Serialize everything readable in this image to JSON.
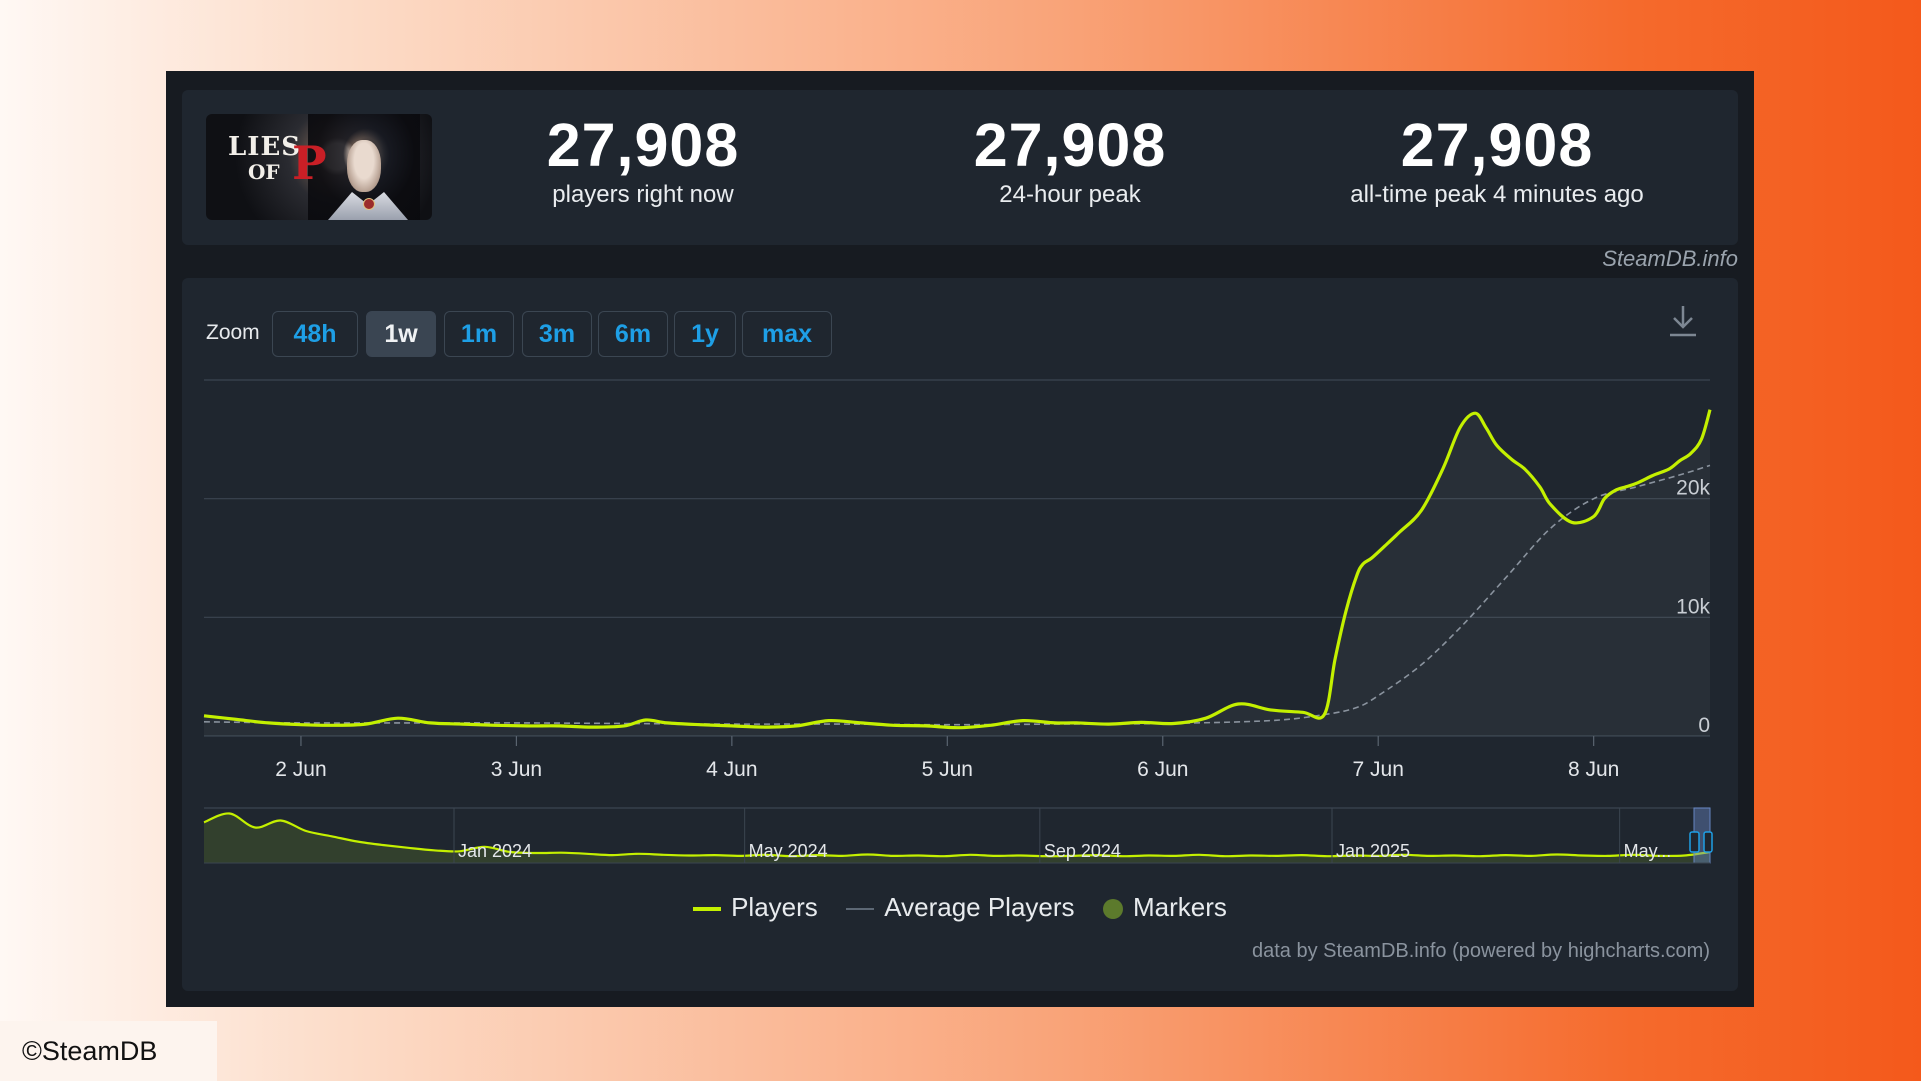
{
  "stats": [
    {
      "value": "27,908",
      "label": "players right now"
    },
    {
      "value": "27,908",
      "label": "24-hour peak"
    },
    {
      "value": "27,908",
      "label": "all-time peak 4 minutes ago"
    }
  ],
  "game_logo": {
    "line1": "LIES",
    "line2": "OF",
    "letter": "P"
  },
  "source_label": "SteamDB.info",
  "zoom": {
    "label": "Zoom",
    "options": [
      "48h",
      "1w",
      "1m",
      "3m",
      "6m",
      "1y",
      "max"
    ],
    "selected": "1w"
  },
  "legend": {
    "players": "Players",
    "average": "Average Players",
    "markers": "Markers"
  },
  "credit": "data by SteamDB.info (powered by highcharts.com)",
  "copyright": "©SteamDB",
  "colors": {
    "players": "#c4f000",
    "average": "#8a939e",
    "markers": "#5c7a2c",
    "background": "#1f262f",
    "zoom_button": "#1e9fe6"
  },
  "icons": [
    "download-icon"
  ],
  "chart_data": {
    "type": "line",
    "title": "",
    "xlabel": "",
    "ylabel": "",
    "x_tick_labels": [
      "2 Jun",
      "3 Jun",
      "4 Jun",
      "5 Jun",
      "6 Jun",
      "7 Jun",
      "8 Jun"
    ],
    "y_tick_labels": [
      "0",
      "10k",
      "20k"
    ],
    "ylim": [
      0,
      30000
    ],
    "xlim": [
      1.55,
      8.54
    ],
    "grid": true,
    "legend_position": "bottom-center",
    "series": [
      {
        "name": "Players",
        "x": [
          1.55,
          1.7,
          1.85,
          2.0,
          2.15,
          2.3,
          2.45,
          2.6,
          2.75,
          2.9,
          3.05,
          3.2,
          3.35,
          3.5,
          3.6,
          3.7,
          3.85,
          4.0,
          4.15,
          4.3,
          4.45,
          4.6,
          4.75,
          4.9,
          5.05,
          5.2,
          5.35,
          5.5,
          5.6,
          5.75,
          5.9,
          6.05,
          6.2,
          6.35,
          6.5,
          6.65,
          6.75,
          6.8,
          6.85,
          6.9,
          6.93,
          6.97,
          7.03,
          7.1,
          7.2,
          7.3,
          7.38,
          7.45,
          7.5,
          7.55,
          7.62,
          7.68,
          7.75,
          7.8,
          7.9,
          8.0,
          8.05,
          8.1,
          8.15,
          8.2,
          8.28,
          8.35,
          8.4,
          8.45,
          8.5,
          8.54
        ],
        "values": [
          1700,
          1400,
          1100,
          950,
          900,
          1000,
          1500,
          1100,
          1000,
          900,
          850,
          850,
          750,
          850,
          1350,
          1100,
          950,
          850,
          750,
          850,
          1300,
          1100,
          900,
          850,
          700,
          900,
          1300,
          1100,
          1100,
          1000,
          1150,
          1050,
          1500,
          2700,
          2200,
          2000,
          1800,
          6500,
          10500,
          13500,
          14500,
          15000,
          16000,
          17200,
          19000,
          22500,
          26000,
          27200,
          26000,
          24500,
          23300,
          22500,
          21000,
          19500,
          18000,
          18500,
          20000,
          20700,
          21000,
          21300,
          22000,
          22500,
          23200,
          23800,
          25000,
          27500
        ]
      },
      {
        "name": "Average Players",
        "x": [
          1.55,
          2.0,
          2.5,
          3.0,
          3.5,
          4.0,
          4.5,
          5.0,
          5.5,
          6.0,
          6.5,
          6.75,
          6.9,
          7.0,
          7.2,
          7.4,
          7.6,
          7.8,
          8.0,
          8.2,
          8.4,
          8.54
        ],
        "values": [
          1200,
          1100,
          1100,
          1100,
          1050,
          1000,
          1000,
          950,
          1000,
          1050,
          1300,
          1800,
          2400,
          3400,
          6000,
          9500,
          13500,
          17500,
          20000,
          21000,
          22000,
          22800
        ]
      }
    ],
    "navigator": {
      "tick_labels": [
        "Jan 2024",
        "May 2024",
        "Sep 2024",
        "Jan 2025",
        "May..."
      ],
      "values": [
        10500,
        13000,
        9000,
        11000,
        8000,
        6500,
        5000,
        4000,
        3200,
        2500,
        2200,
        3500,
        2000,
        1700,
        1800,
        1500,
        1100,
        1500,
        1200,
        1000,
        1100,
        900,
        1200,
        800,
        1100,
        900,
        1300,
        900,
        1000,
        800,
        1200,
        900,
        1000,
        800,
        900,
        1100,
        800,
        1000,
        900,
        1200,
        800,
        1000,
        900,
        1100,
        800,
        1000,
        900,
        1200,
        900,
        1000,
        800,
        1100,
        900,
        1300,
        1000,
        900,
        1200,
        900,
        1000,
        2000
      ]
    }
  }
}
